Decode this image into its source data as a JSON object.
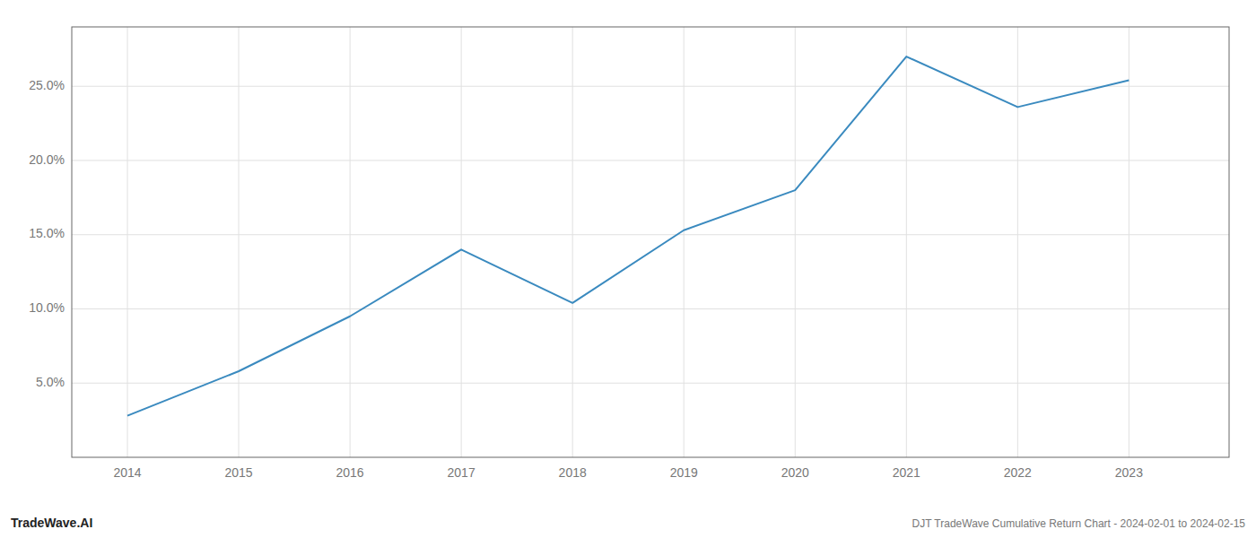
{
  "chart_data": {
    "type": "line",
    "title": "DJT TradeWave Cumulative Return Chart - 2024-02-01 to 2024-02-15",
    "annotations": [
      "TradeWave.AI"
    ],
    "x": [
      2014,
      2015,
      2016,
      2017,
      2018,
      2019,
      2020,
      2021,
      2022,
      2023
    ],
    "values": [
      2.8,
      5.8,
      9.5,
      14.0,
      10.4,
      15.3,
      18.0,
      27.0,
      23.6,
      25.4
    ],
    "color": "#3a8abf",
    "xlim": [
      2013.5,
      2023.9
    ],
    "xticks": [
      2014,
      2015,
      2016,
      2017,
      2018,
      2019,
      2020,
      2021,
      2022,
      2023
    ],
    "ylim": [
      0,
      29
    ],
    "yticks": [
      {
        "value": 5.0,
        "label": "5.0%"
      },
      {
        "value": 10.0,
        "label": "10.0%"
      },
      {
        "value": 15.0,
        "label": "15.0%"
      },
      {
        "value": 20.0,
        "label": "20.0%"
      },
      {
        "value": 25.0,
        "label": "25.0%"
      }
    ],
    "grid": true
  }
}
